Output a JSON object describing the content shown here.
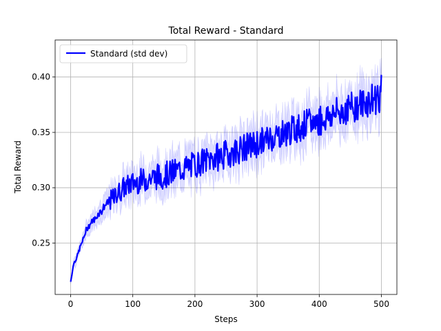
{
  "chart_data": {
    "type": "line",
    "title": "Total Reward - Standard",
    "xlabel": "Steps",
    "ylabel": "Total Reward",
    "xlim": [
      -25,
      525
    ],
    "ylim": [
      0.2035,
      0.4335
    ],
    "xticks": [
      0,
      100,
      200,
      300,
      400,
      500
    ],
    "yticks": [
      0.25,
      0.3,
      0.35,
      0.4
    ],
    "xtick_labels": [
      "0",
      "100",
      "200",
      "300",
      "400",
      "500"
    ],
    "ytick_labels": [
      "0.25",
      "0.30",
      "0.35",
      "0.40"
    ],
    "grid": true,
    "legend_position": "top-left",
    "series": [
      {
        "name": "Standard (std dev)",
        "color": "#0000ff",
        "band_color": "#0000ff",
        "x": [
          0,
          5,
          10,
          15,
          20,
          25,
          30,
          35,
          40,
          45,
          50,
          55,
          60,
          65,
          70,
          75,
          80,
          85,
          90,
          95,
          100,
          110,
          120,
          130,
          140,
          150,
          160,
          170,
          180,
          190,
          200,
          210,
          220,
          230,
          240,
          250,
          260,
          270,
          280,
          290,
          300,
          310,
          320,
          330,
          340,
          350,
          360,
          370,
          380,
          390,
          400,
          410,
          420,
          430,
          440,
          450,
          460,
          470,
          480,
          490,
          500
        ],
        "y": [
          0.215,
          0.232,
          0.237,
          0.246,
          0.253,
          0.262,
          0.266,
          0.27,
          0.272,
          0.277,
          0.279,
          0.284,
          0.286,
          0.289,
          0.291,
          0.295,
          0.297,
          0.3,
          0.301,
          0.303,
          0.304,
          0.306,
          0.307,
          0.309,
          0.31,
          0.311,
          0.313,
          0.315,
          0.317,
          0.319,
          0.321,
          0.323,
          0.325,
          0.327,
          0.328,
          0.33,
          0.332,
          0.334,
          0.336,
          0.338,
          0.34,
          0.342,
          0.345,
          0.347,
          0.349,
          0.351,
          0.353,
          0.355,
          0.357,
          0.359,
          0.361,
          0.363,
          0.366,
          0.368,
          0.37,
          0.372,
          0.374,
          0.376,
          0.378,
          0.381,
          0.385
        ],
        "std": [
          0.002,
          0.003,
          0.004,
          0.004,
          0.005,
          0.005,
          0.006,
          0.006,
          0.007,
          0.007,
          0.008,
          0.008,
          0.008,
          0.009,
          0.009,
          0.009,
          0.01,
          0.01,
          0.01,
          0.01,
          0.011,
          0.011,
          0.011,
          0.011,
          0.012,
          0.012,
          0.012,
          0.012,
          0.012,
          0.012,
          0.012,
          0.012,
          0.012,
          0.013,
          0.013,
          0.013,
          0.013,
          0.013,
          0.013,
          0.013,
          0.013,
          0.013,
          0.013,
          0.013,
          0.013,
          0.013,
          0.013,
          0.014,
          0.014,
          0.014,
          0.014,
          0.014,
          0.014,
          0.014,
          0.014,
          0.014,
          0.014,
          0.015,
          0.015,
          0.016,
          0.017
        ]
      }
    ]
  }
}
